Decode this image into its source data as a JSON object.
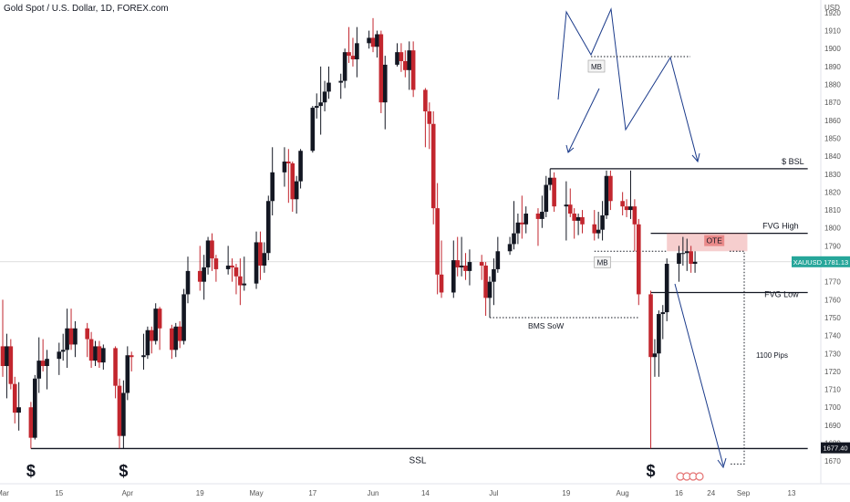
{
  "header": {
    "symbol_title": "Gold Spot / U.S. Dollar, 1D, FOREX.com",
    "unit": "USD"
  },
  "chart_data": {
    "type": "candlestick",
    "title": "Gold Spot / U.S. Dollar, 1D, FOREX.com",
    "ylabel": "USD",
    "ylim": [
      1665,
      1922
    ],
    "y_ticks": [
      1670,
      1680,
      1690,
      1700,
      1710,
      1720,
      1730,
      1740,
      1750,
      1760,
      1770,
      1780,
      1790,
      1800,
      1810,
      1820,
      1830,
      1840,
      1850,
      1860,
      1870,
      1880,
      1890,
      1900,
      1910,
      1920
    ],
    "x_tick_labels": [
      {
        "label": "Mar",
        "x": "2021-03-01"
      },
      {
        "label": "15",
        "x": "2021-03-15"
      },
      {
        "label": "Apr",
        "x": "2021-04-01"
      },
      {
        "label": "19",
        "x": "2021-04-19"
      },
      {
        "label": "May",
        "x": "2021-05-03"
      },
      {
        "label": "17",
        "x": "2021-05-17"
      },
      {
        "label": "Jun",
        "x": "2021-06-01"
      },
      {
        "label": "14",
        "x": "2021-06-14"
      },
      {
        "label": "Jul",
        "x": "2021-07-01"
      },
      {
        "label": "19",
        "x": "2021-07-19"
      },
      {
        "label": "Aug",
        "x": "2021-08-02"
      },
      {
        "label": "16",
        "x": "2021-08-16"
      },
      {
        "label": "24",
        "x": "2021-08-24"
      },
      {
        "label": "Sep",
        "x": "2021-09-01"
      },
      {
        "label": "13",
        "x": "2021-09-13"
      }
    ],
    "colors": {
      "up": "#131722",
      "down": "#c2262e",
      "fvg": "#e57373",
      "price_badge": "#26a69a",
      "level_badge": "#131722",
      "arrow": "#1a3a8a"
    },
    "grid": false,
    "price_label": {
      "symbol": "XAUUSD",
      "value": "1781.13",
      "y": 1781.13
    },
    "level_label": {
      "value": "1677.40",
      "y": 1677.4
    },
    "candles": [
      {
        "d": "2021-02-26",
        "o": 1772,
        "h": 1775,
        "l": 1716,
        "c": 1734
      },
      {
        "d": "2021-03-01",
        "o": 1734,
        "h": 1760,
        "l": 1717,
        "c": 1723
      },
      {
        "d": "2021-03-02",
        "o": 1723,
        "h": 1741,
        "l": 1705,
        "c": 1734
      },
      {
        "d": "2021-03-03",
        "o": 1734,
        "h": 1738,
        "l": 1710,
        "c": 1713
      },
      {
        "d": "2021-03-04",
        "o": 1713,
        "h": 1717,
        "l": 1691,
        "c": 1697
      },
      {
        "d": "2021-03-05",
        "o": 1697,
        "h": 1714,
        "l": 1687,
        "c": 1700
      },
      {
        "d": "2021-03-08",
        "o": 1700,
        "h": 1703,
        "l": 1677,
        "c": 1683
      },
      {
        "d": "2021-03-09",
        "o": 1683,
        "h": 1718,
        "l": 1682,
        "c": 1716
      },
      {
        "d": "2021-03-10",
        "o": 1716,
        "h": 1739,
        "l": 1708,
        "c": 1726
      },
      {
        "d": "2021-03-11",
        "o": 1726,
        "h": 1738,
        "l": 1720,
        "c": 1723
      },
      {
        "d": "2021-03-12",
        "o": 1723,
        "h": 1732,
        "l": 1710,
        "c": 1727
      },
      {
        "d": "2021-03-15",
        "o": 1727,
        "h": 1736,
        "l": 1718,
        "c": 1731
      },
      {
        "d": "2021-03-16",
        "o": 1731,
        "h": 1741,
        "l": 1726,
        "c": 1732
      },
      {
        "d": "2021-03-17",
        "o": 1732,
        "h": 1755,
        "l": 1722,
        "c": 1744
      },
      {
        "d": "2021-03-18",
        "o": 1744,
        "h": 1755,
        "l": 1732,
        "c": 1735
      },
      {
        "d": "2021-03-19",
        "o": 1735,
        "h": 1748,
        "l": 1728,
        "c": 1744
      },
      {
        "d": "2021-03-22",
        "o": 1744,
        "h": 1747,
        "l": 1728,
        "c": 1738
      },
      {
        "d": "2021-03-23",
        "o": 1738,
        "h": 1742,
        "l": 1722,
        "c": 1726
      },
      {
        "d": "2021-03-24",
        "o": 1726,
        "h": 1737,
        "l": 1723,
        "c": 1734
      },
      {
        "d": "2021-03-25",
        "o": 1734,
        "h": 1737,
        "l": 1722,
        "c": 1725
      },
      {
        "d": "2021-03-26",
        "o": 1725,
        "h": 1735,
        "l": 1721,
        "c": 1733
      },
      {
        "d": "2021-03-29",
        "o": 1733,
        "h": 1734,
        "l": 1705,
        "c": 1712
      },
      {
        "d": "2021-03-30",
        "o": 1712,
        "h": 1716,
        "l": 1677,
        "c": 1684
      },
      {
        "d": "2021-03-31",
        "o": 1684,
        "h": 1715,
        "l": 1677,
        "c": 1708
      },
      {
        "d": "2021-04-01",
        "o": 1708,
        "h": 1734,
        "l": 1704,
        "c": 1729
      },
      {
        "d": "2021-04-02",
        "o": 1729,
        "h": 1731,
        "l": 1720,
        "c": 1728
      },
      {
        "d": "2021-04-05",
        "o": 1728,
        "h": 1741,
        "l": 1721,
        "c": 1729
      },
      {
        "d": "2021-04-06",
        "o": 1729,
        "h": 1745,
        "l": 1727,
        "c": 1743
      },
      {
        "d": "2021-04-07",
        "o": 1743,
        "h": 1745,
        "l": 1730,
        "c": 1737
      },
      {
        "d": "2021-04-08",
        "o": 1737,
        "h": 1758,
        "l": 1735,
        "c": 1755
      },
      {
        "d": "2021-04-09",
        "o": 1755,
        "h": 1756,
        "l": 1732,
        "c": 1744
      },
      {
        "d": "2021-04-12",
        "o": 1744,
        "h": 1746,
        "l": 1727,
        "c": 1732
      },
      {
        "d": "2021-04-13",
        "o": 1732,
        "h": 1747,
        "l": 1728,
        "c": 1745
      },
      {
        "d": "2021-04-14",
        "o": 1745,
        "h": 1748,
        "l": 1733,
        "c": 1737
      },
      {
        "d": "2021-04-15",
        "o": 1737,
        "h": 1766,
        "l": 1735,
        "c": 1763
      },
      {
        "d": "2021-04-16",
        "o": 1763,
        "h": 1784,
        "l": 1758,
        "c": 1776
      },
      {
        "d": "2021-04-19",
        "o": 1776,
        "h": 1790,
        "l": 1765,
        "c": 1770
      },
      {
        "d": "2021-04-20",
        "o": 1770,
        "h": 1785,
        "l": 1760,
        "c": 1778
      },
      {
        "d": "2021-04-21",
        "o": 1778,
        "h": 1795,
        "l": 1774,
        "c": 1793
      },
      {
        "d": "2021-04-22",
        "o": 1793,
        "h": 1797,
        "l": 1776,
        "c": 1783
      },
      {
        "d": "2021-04-23",
        "o": 1783,
        "h": 1785,
        "l": 1770,
        "c": 1777
      },
      {
        "d": "2021-04-26",
        "o": 1777,
        "h": 1790,
        "l": 1774,
        "c": 1779
      },
      {
        "d": "2021-04-27",
        "o": 1779,
        "h": 1783,
        "l": 1770,
        "c": 1778
      },
      {
        "d": "2021-04-28",
        "o": 1778,
        "h": 1780,
        "l": 1763,
        "c": 1773
      },
      {
        "d": "2021-04-29",
        "o": 1773,
        "h": 1783,
        "l": 1757,
        "c": 1768
      },
      {
        "d": "2021-04-30",
        "o": 1768,
        "h": 1784,
        "l": 1765,
        "c": 1769
      },
      {
        "d": "2021-05-03",
        "o": 1769,
        "h": 1798,
        "l": 1766,
        "c": 1792
      },
      {
        "d": "2021-05-04",
        "o": 1792,
        "h": 1798,
        "l": 1771,
        "c": 1779
      },
      {
        "d": "2021-05-05",
        "o": 1779,
        "h": 1792,
        "l": 1775,
        "c": 1786
      },
      {
        "d": "2021-05-06",
        "o": 1786,
        "h": 1818,
        "l": 1782,
        "c": 1815
      },
      {
        "d": "2021-05-07",
        "o": 1815,
        "h": 1845,
        "l": 1807,
        "c": 1831
      },
      {
        "d": "2021-05-10",
        "o": 1831,
        "h": 1845,
        "l": 1823,
        "c": 1837
      },
      {
        "d": "2021-05-11",
        "o": 1837,
        "h": 1844,
        "l": 1814,
        "c": 1836
      },
      {
        "d": "2021-05-12",
        "o": 1836,
        "h": 1837,
        "l": 1809,
        "c": 1816
      },
      {
        "d": "2021-05-13",
        "o": 1816,
        "h": 1829,
        "l": 1808,
        "c": 1826
      },
      {
        "d": "2021-05-14",
        "o": 1826,
        "h": 1844,
        "l": 1822,
        "c": 1843
      },
      {
        "d": "2021-05-17",
        "o": 1843,
        "h": 1868,
        "l": 1842,
        "c": 1867
      },
      {
        "d": "2021-05-18",
        "o": 1867,
        "h": 1875,
        "l": 1861,
        "c": 1868
      },
      {
        "d": "2021-05-19",
        "o": 1868,
        "h": 1890,
        "l": 1852,
        "c": 1870
      },
      {
        "d": "2021-05-20",
        "o": 1870,
        "h": 1882,
        "l": 1865,
        "c": 1876
      },
      {
        "d": "2021-05-21",
        "o": 1876,
        "h": 1890,
        "l": 1872,
        "c": 1881
      },
      {
        "d": "2021-05-24",
        "o": 1881,
        "h": 1886,
        "l": 1872,
        "c": 1882
      },
      {
        "d": "2021-05-25",
        "o": 1882,
        "h": 1900,
        "l": 1878,
        "c": 1898
      },
      {
        "d": "2021-05-26",
        "o": 1898,
        "h": 1912,
        "l": 1892,
        "c": 1896
      },
      {
        "d": "2021-05-27",
        "o": 1896,
        "h": 1906,
        "l": 1890,
        "c": 1894
      },
      {
        "d": "2021-05-28",
        "o": 1894,
        "h": 1912,
        "l": 1884,
        "c": 1903
      },
      {
        "d": "2021-05-31",
        "o": 1903,
        "h": 1910,
        "l": 1900,
        "c": 1906
      },
      {
        "d": "2021-06-01",
        "o": 1906,
        "h": 1917,
        "l": 1898,
        "c": 1901
      },
      {
        "d": "2021-06-02",
        "o": 1901,
        "h": 1910,
        "l": 1895,
        "c": 1908
      },
      {
        "d": "2021-06-03",
        "o": 1908,
        "h": 1910,
        "l": 1864,
        "c": 1870
      },
      {
        "d": "2021-06-04",
        "o": 1870,
        "h": 1896,
        "l": 1855,
        "c": 1891
      },
      {
        "d": "2021-06-07",
        "o": 1891,
        "h": 1903,
        "l": 1890,
        "c": 1898
      },
      {
        "d": "2021-06-08",
        "o": 1898,
        "h": 1903,
        "l": 1887,
        "c": 1893
      },
      {
        "d": "2021-06-09",
        "o": 1893,
        "h": 1899,
        "l": 1884,
        "c": 1888
      },
      {
        "d": "2021-06-10",
        "o": 1888,
        "h": 1904,
        "l": 1877,
        "c": 1899
      },
      {
        "d": "2021-06-11",
        "o": 1899,
        "h": 1904,
        "l": 1873,
        "c": 1877
      },
      {
        "d": "2021-06-14",
        "o": 1877,
        "h": 1878,
        "l": 1845,
        "c": 1865
      },
      {
        "d": "2021-06-15",
        "o": 1865,
        "h": 1870,
        "l": 1844,
        "c": 1858
      },
      {
        "d": "2021-06-16",
        "o": 1858,
        "h": 1865,
        "l": 1802,
        "c": 1811
      },
      {
        "d": "2021-06-17",
        "o": 1811,
        "h": 1825,
        "l": 1763,
        "c": 1774
      },
      {
        "d": "2021-06-18",
        "o": 1774,
        "h": 1793,
        "l": 1761,
        "c": 1764
      },
      {
        "d": "2021-06-21",
        "o": 1764,
        "h": 1793,
        "l": 1761,
        "c": 1782
      },
      {
        "d": "2021-06-22",
        "o": 1782,
        "h": 1795,
        "l": 1773,
        "c": 1778
      },
      {
        "d": "2021-06-23",
        "o": 1778,
        "h": 1795,
        "l": 1773,
        "c": 1779
      },
      {
        "d": "2021-06-24",
        "o": 1779,
        "h": 1786,
        "l": 1771,
        "c": 1776
      },
      {
        "d": "2021-06-25",
        "o": 1776,
        "h": 1788,
        "l": 1768,
        "c": 1781
      },
      {
        "d": "2021-06-28",
        "o": 1781,
        "h": 1785,
        "l": 1771,
        "c": 1779
      },
      {
        "d": "2021-06-29",
        "o": 1779,
        "h": 1781,
        "l": 1751,
        "c": 1761
      },
      {
        "d": "2021-06-30",
        "o": 1761,
        "h": 1773,
        "l": 1750,
        "c": 1770
      },
      {
        "d": "2021-07-01",
        "o": 1770,
        "h": 1783,
        "l": 1757,
        "c": 1777
      },
      {
        "d": "2021-07-02",
        "o": 1777,
        "h": 1795,
        "l": 1775,
        "c": 1787
      },
      {
        "d": "2021-07-05",
        "o": 1787,
        "h": 1795,
        "l": 1785,
        "c": 1791
      },
      {
        "d": "2021-07-06",
        "o": 1791,
        "h": 1815,
        "l": 1788,
        "c": 1797
      },
      {
        "d": "2021-07-07",
        "o": 1797,
        "h": 1808,
        "l": 1791,
        "c": 1803
      },
      {
        "d": "2021-07-08",
        "o": 1803,
        "h": 1818,
        "l": 1794,
        "c": 1802
      },
      {
        "d": "2021-07-09",
        "o": 1802,
        "h": 1812,
        "l": 1797,
        "c": 1808
      },
      {
        "d": "2021-07-12",
        "o": 1808,
        "h": 1811,
        "l": 1790,
        "c": 1805
      },
      {
        "d": "2021-07-13",
        "o": 1805,
        "h": 1818,
        "l": 1800,
        "c": 1809
      },
      {
        "d": "2021-07-14",
        "o": 1809,
        "h": 1829,
        "l": 1806,
        "c": 1824
      },
      {
        "d": "2021-07-15",
        "o": 1824,
        "h": 1833,
        "l": 1821,
        "c": 1828
      },
      {
        "d": "2021-07-16",
        "o": 1828,
        "h": 1831,
        "l": 1809,
        "c": 1812
      },
      {
        "d": "2021-07-19",
        "o": 1812,
        "h": 1826,
        "l": 1793,
        "c": 1813
      },
      {
        "d": "2021-07-20",
        "o": 1813,
        "h": 1822,
        "l": 1806,
        "c": 1808
      },
      {
        "d": "2021-07-21",
        "o": 1808,
        "h": 1811,
        "l": 1794,
        "c": 1804
      },
      {
        "d": "2021-07-22",
        "o": 1804,
        "h": 1808,
        "l": 1796,
        "c": 1806
      },
      {
        "d": "2021-07-23",
        "o": 1806,
        "h": 1810,
        "l": 1797,
        "c": 1802
      },
      {
        "d": "2021-07-26",
        "o": 1802,
        "h": 1810,
        "l": 1793,
        "c": 1797
      },
      {
        "d": "2021-07-27",
        "o": 1797,
        "h": 1809,
        "l": 1794,
        "c": 1799
      },
      {
        "d": "2021-07-28",
        "o": 1799,
        "h": 1815,
        "l": 1793,
        "c": 1807
      },
      {
        "d": "2021-07-29",
        "o": 1807,
        "h": 1832,
        "l": 1805,
        "c": 1829
      },
      {
        "d": "2021-07-30",
        "o": 1829,
        "h": 1832,
        "l": 1810,
        "c": 1815
      },
      {
        "d": "2021-08-02",
        "o": 1815,
        "h": 1820,
        "l": 1807,
        "c": 1812
      },
      {
        "d": "2021-08-03",
        "o": 1812,
        "h": 1816,
        "l": 1806,
        "c": 1810
      },
      {
        "d": "2021-08-04",
        "o": 1810,
        "h": 1832,
        "l": 1805,
        "c": 1812
      },
      {
        "d": "2021-08-05",
        "o": 1812,
        "h": 1816,
        "l": 1787,
        "c": 1802
      },
      {
        "d": "2021-08-06",
        "o": 1802,
        "h": 1805,
        "l": 1757,
        "c": 1763
      },
      {
        "d": "2021-08-09",
        "o": 1763,
        "h": 1765,
        "l": 1677,
        "c": 1728
      },
      {
        "d": "2021-08-10",
        "o": 1728,
        "h": 1738,
        "l": 1717,
        "c": 1730
      },
      {
        "d": "2021-08-11",
        "o": 1730,
        "h": 1754,
        "l": 1717,
        "c": 1752
      },
      {
        "d": "2021-08-12",
        "o": 1752,
        "h": 1757,
        "l": 1738,
        "c": 1753
      },
      {
        "d": "2021-08-13",
        "o": 1753,
        "h": 1783,
        "l": 1748,
        "c": 1780
      },
      {
        "d": "2021-08-16",
        "o": 1780,
        "h": 1790,
        "l": 1770,
        "c": 1786
      },
      {
        "d": "2021-08-17",
        "o": 1786,
        "h": 1795,
        "l": 1779,
        "c": 1786
      },
      {
        "d": "2021-08-18",
        "o": 1786,
        "h": 1794,
        "l": 1776,
        "c": 1787
      },
      {
        "d": "2021-08-19",
        "o": 1787,
        "h": 1790,
        "l": 1775,
        "c": 1780
      },
      {
        "d": "2021-08-20",
        "o": 1780,
        "h": 1787,
        "l": 1775,
        "c": 1781.13
      }
    ],
    "levels": [
      {
        "name": "BSL",
        "label": "$  BSL",
        "y": 1833,
        "from": "2021-07-15",
        "to": "2021-09-17",
        "style": "solid"
      },
      {
        "name": "FVG High",
        "label": "FVG High",
        "y": 1797,
        "from": "2021-08-09",
        "to": "2021-09-17",
        "style": "solid"
      },
      {
        "name": "FVG Low",
        "label": "FVG Low",
        "y": 1764,
        "from": "2021-08-09",
        "to": "2021-09-17",
        "style": "solid"
      },
      {
        "name": "SSL",
        "label": "SSL",
        "y": 1677,
        "from": "2021-03-08",
        "to": "2021-09-17",
        "style": "solid"
      },
      {
        "name": "BMS SoW",
        "label": "BMS SoW",
        "y": 1750,
        "from": "2021-06-30",
        "to": "2021-08-06",
        "style": "dotted"
      },
      {
        "name": "MB",
        "label": "MB",
        "y": 1787,
        "from": "2021-07-26",
        "to": "2021-08-13",
        "style": "dotted"
      }
    ],
    "zones": [
      {
        "name": "OTE",
        "label": "OTE",
        "y1": 1787,
        "y2": 1797,
        "from": "2021-08-13",
        "to": "2021-09-02"
      }
    ],
    "annotations": [
      {
        "type": "text",
        "text": "$",
        "x": "2021-03-08",
        "y": 1665
      },
      {
        "type": "text",
        "text": "$",
        "x": "2021-03-31",
        "y": 1665
      },
      {
        "type": "text",
        "text": "$",
        "x": "2021-08-09",
        "y": 1665
      },
      {
        "type": "measure",
        "text": "1100 Pips",
        "x": "2021-09-02",
        "from": 1677,
        "to": 1787
      },
      {
        "type": "label",
        "text": "MB",
        "x": "2021-08-05",
        "y": 1890
      }
    ]
  }
}
